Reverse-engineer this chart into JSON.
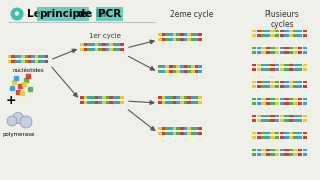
{
  "bg_color": "#f0f0eb",
  "title_icon_color": "#3dbfb0",
  "cycle1_label": "1er cycle",
  "cycle2_label": "2eme cycle",
  "cycle3_label": "Plusieurs\ncycles",
  "nucleotides_label": "nucléotides",
  "polymerase_label": "polymerase",
  "plus_label": "+",
  "c1": "#e8c93a",
  "c2": "#d43c2e",
  "c3": "#4caf50",
  "c4": "#3d9be8",
  "arrow_color": "#555555",
  "text_color": "#222222",
  "line_color": "#aaaaaa"
}
